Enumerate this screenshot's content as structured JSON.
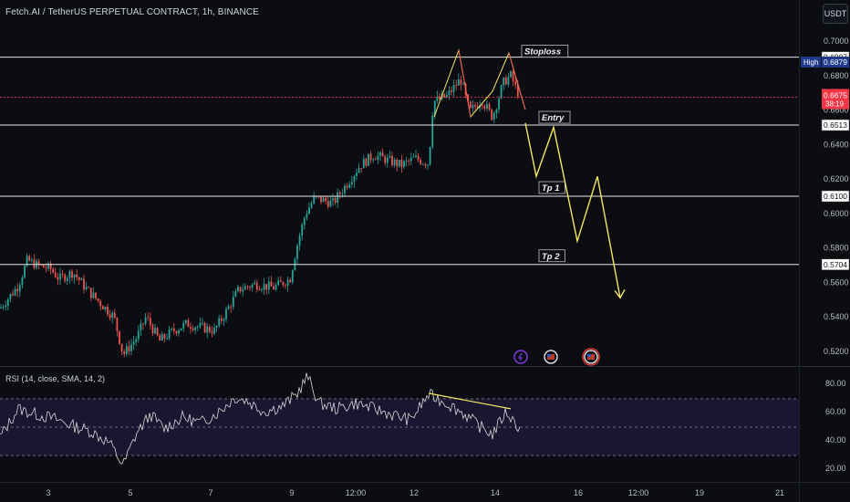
{
  "header": {
    "title": "Fetch.AI / TetherUS PERPETUAL CONTRACT, 1h, BINANCE",
    "currency": "USDT"
  },
  "rsi": {
    "title": "RSI (14, close, SMA, 14, 2)",
    "ticks": [
      "80.00",
      "60.00",
      "40.00",
      "20.00"
    ]
  },
  "price_axis": {
    "ticks": [
      "0.7000",
      "0.6800",
      "0.6600",
      "0.6400",
      "0.6200",
      "0.6000",
      "0.5800",
      "0.5600",
      "0.5400",
      "0.5200"
    ],
    "high_label": "High",
    "high_value": "0.6879",
    "current_price": "0.6675",
    "countdown": "38:19"
  },
  "levels": [
    {
      "value": "0.6907",
      "label": "Stoploss"
    },
    {
      "value": "0.6513",
      "label": "Entry"
    },
    {
      "value": "0.6100",
      "label": "Tp 1"
    },
    {
      "value": "0.5704",
      "label": "Tp 2"
    }
  ],
  "time_axis": {
    "ticks": [
      "3",
      "5",
      "7",
      "9",
      "12:00",
      "12",
      "14",
      "16",
      "12:00",
      "19",
      "21"
    ]
  },
  "colors": {
    "bull": "#26a69a",
    "bear": "#ef5350",
    "projection": "#f5e663",
    "level_line": "#e6e6e6",
    "price_tag": "#f23645",
    "rsi_line": "#d8d8d8"
  },
  "chart_data": {
    "type": "candlestick",
    "title": "Fetch.AI / TetherUS PERPETUAL CONTRACT, 1h, BINANCE",
    "ylim": [
      0.512,
      0.708
    ],
    "price_path": [
      {
        "x": 0,
        "y": 0.545
      },
      {
        "x": 20,
        "y": 0.558
      },
      {
        "x": 30,
        "y": 0.573
      },
      {
        "x": 40,
        "y": 0.57
      },
      {
        "x": 55,
        "y": 0.568
      },
      {
        "x": 65,
        "y": 0.562
      },
      {
        "x": 80,
        "y": 0.566
      },
      {
        "x": 95,
        "y": 0.556
      },
      {
        "x": 110,
        "y": 0.548
      },
      {
        "x": 125,
        "y": 0.54
      },
      {
        "x": 135,
        "y": 0.518
      },
      {
        "x": 150,
        "y": 0.528
      },
      {
        "x": 160,
        "y": 0.54
      },
      {
        "x": 175,
        "y": 0.526
      },
      {
        "x": 190,
        "y": 0.532
      },
      {
        "x": 205,
        "y": 0.536
      },
      {
        "x": 220,
        "y": 0.534
      },
      {
        "x": 235,
        "y": 0.532
      },
      {
        "x": 248,
        "y": 0.543
      },
      {
        "x": 262,
        "y": 0.556
      },
      {
        "x": 280,
        "y": 0.559
      },
      {
        "x": 300,
        "y": 0.557
      },
      {
        "x": 318,
        "y": 0.562
      },
      {
        "x": 325,
        "y": 0.58
      },
      {
        "x": 335,
        "y": 0.6
      },
      {
        "x": 345,
        "y": 0.609
      },
      {
        "x": 365,
        "y": 0.606
      },
      {
        "x": 380,
        "y": 0.617
      },
      {
        "x": 395,
        "y": 0.628
      },
      {
        "x": 410,
        "y": 0.634
      },
      {
        "x": 425,
        "y": 0.631
      },
      {
        "x": 440,
        "y": 0.628
      },
      {
        "x": 455,
        "y": 0.632
      },
      {
        "x": 470,
        "y": 0.629
      },
      {
        "x": 475,
        "y": 0.665
      },
      {
        "x": 490,
        "y": 0.668
      },
      {
        "x": 505,
        "y": 0.678
      },
      {
        "x": 515,
        "y": 0.659
      },
      {
        "x": 528,
        "y": 0.666
      },
      {
        "x": 540,
        "y": 0.656
      },
      {
        "x": 552,
        "y": 0.676
      },
      {
        "x": 560,
        "y": 0.68
      },
      {
        "x": 570,
        "y": 0.667
      }
    ],
    "projection": [
      {
        "x": 576,
        "y": 0.6525
      },
      {
        "x": 588,
        "y": 0.6215
      },
      {
        "x": 607,
        "y": 0.65
      },
      {
        "x": 633,
        "y": 0.584
      },
      {
        "x": 655,
        "y": 0.6215
      },
      {
        "x": 680,
        "y": 0.551
      }
    ],
    "rsi_path": [
      {
        "x": 0,
        "y": 42
      },
      {
        "x": 20,
        "y": 62
      },
      {
        "x": 40,
        "y": 58
      },
      {
        "x": 60,
        "y": 55
      },
      {
        "x": 80,
        "y": 50
      },
      {
        "x": 100,
        "y": 46
      },
      {
        "x": 120,
        "y": 38
      },
      {
        "x": 135,
        "y": 22
      },
      {
        "x": 150,
        "y": 45
      },
      {
        "x": 165,
        "y": 58
      },
      {
        "x": 180,
        "y": 48
      },
      {
        "x": 200,
        "y": 56
      },
      {
        "x": 220,
        "y": 52
      },
      {
        "x": 240,
        "y": 60
      },
      {
        "x": 258,
        "y": 70
      },
      {
        "x": 270,
        "y": 68
      },
      {
        "x": 290,
        "y": 60
      },
      {
        "x": 310,
        "y": 64
      },
      {
        "x": 325,
        "y": 72
      },
      {
        "x": 337,
        "y": 85
      },
      {
        "x": 350,
        "y": 66
      },
      {
        "x": 370,
        "y": 62
      },
      {
        "x": 390,
        "y": 66
      },
      {
        "x": 410,
        "y": 62
      },
      {
        "x": 430,
        "y": 58
      },
      {
        "x": 450,
        "y": 54
      },
      {
        "x": 470,
        "y": 72
      },
      {
        "x": 490,
        "y": 66
      },
      {
        "x": 510,
        "y": 58
      },
      {
        "x": 525,
        "y": 50
      },
      {
        "x": 540,
        "y": 44
      },
      {
        "x": 555,
        "y": 60
      },
      {
        "x": 570,
        "y": 48
      }
    ],
    "rsi_trendline": [
      {
        "x": 470,
        "y": 73
      },
      {
        "x": 560,
        "y": 62
      }
    ]
  }
}
